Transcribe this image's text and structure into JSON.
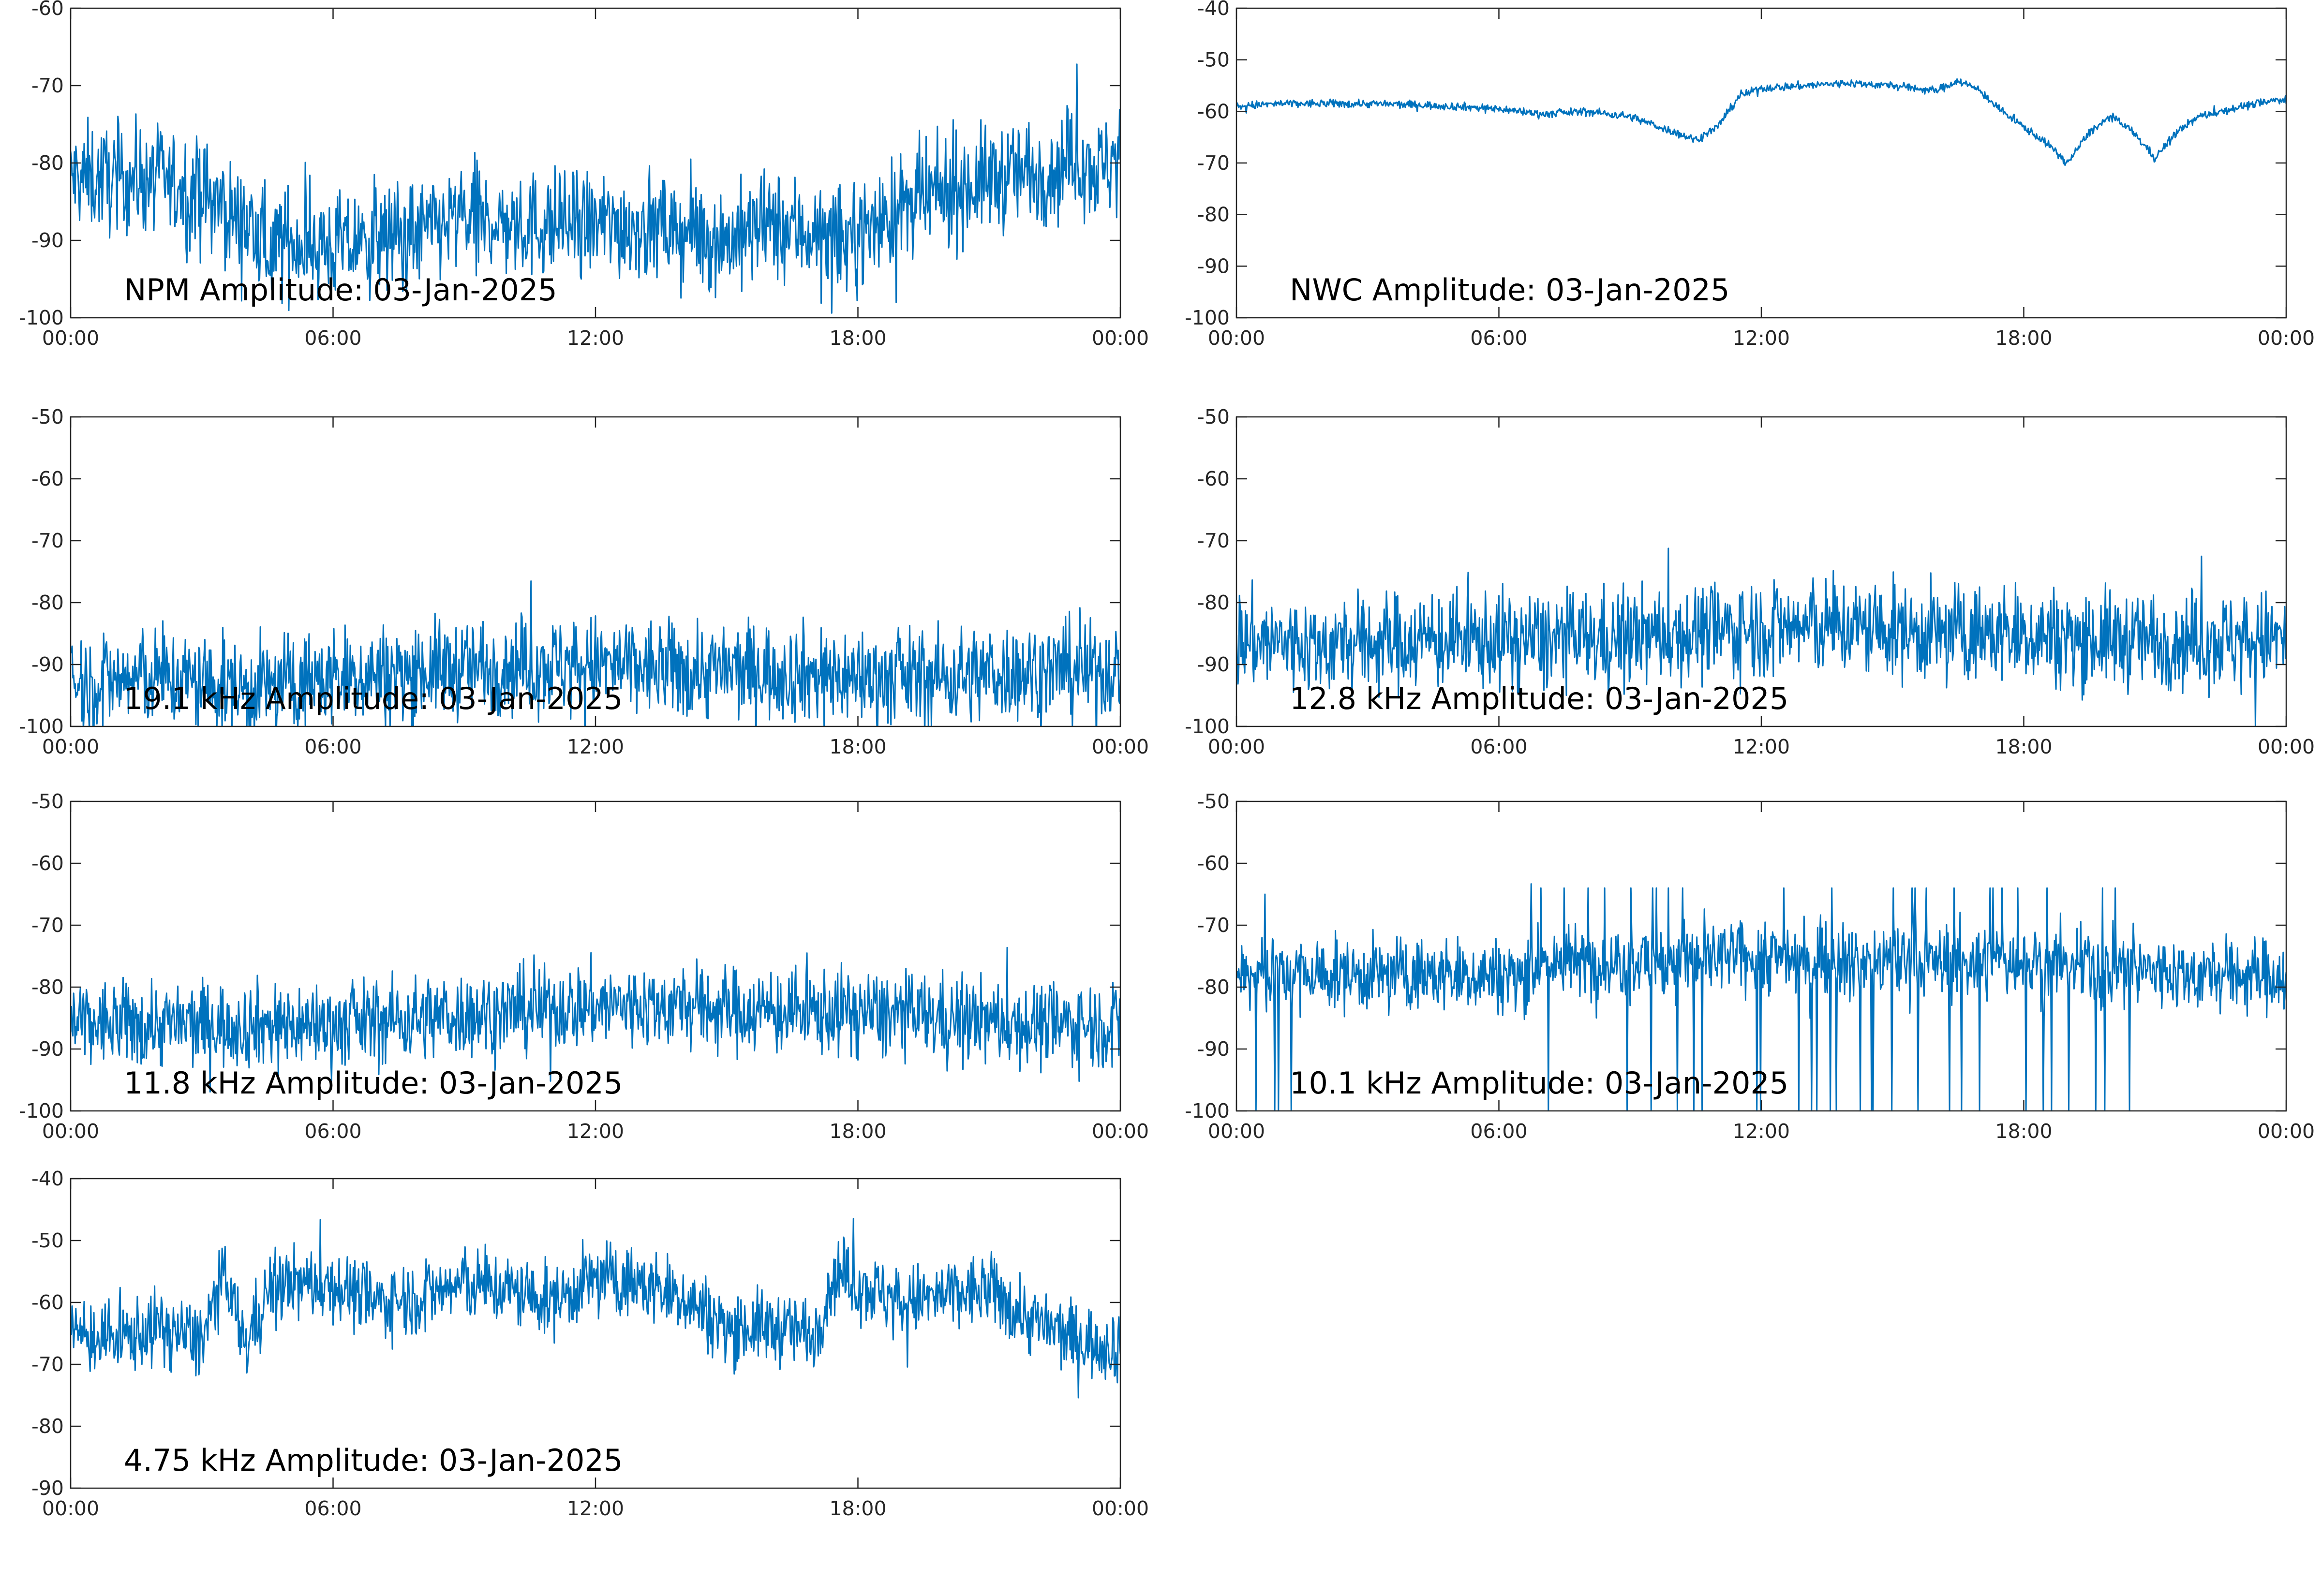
{
  "colors": {
    "series": "#0072BD",
    "axes": "#262626",
    "background": "#FFFFFF"
  },
  "chart_data": [
    {
      "type": "line",
      "title": "NPM Amplitude: 03-Jan-2025",
      "x_ticks": [
        "00:00",
        "06:00",
        "12:00",
        "18:00",
        "00:00"
      ],
      "xlim_hours": [
        0,
        24
      ],
      "y_ticks": [
        "-60",
        "-70",
        "-80",
        "-90",
        "-100"
      ],
      "ylim": [
        -100,
        -60
      ],
      "grid": false,
      "noise": 3.5,
      "trace": {
        "hours": [
          0,
          1,
          2,
          3,
          4,
          4.5,
          5,
          6,
          7,
          8,
          9,
          10,
          11,
          12,
          13,
          14,
          15,
          16,
          17,
          17.5,
          18,
          19,
          20,
          21,
          22,
          22.5,
          23,
          23.5,
          24
        ],
        "values": [
          -82,
          -82,
          -82,
          -84,
          -88,
          -91,
          -90,
          -91,
          -90,
          -89,
          -87,
          -88,
          -88,
          -88,
          -88,
          -89,
          -90,
          -88,
          -89,
          -91,
          -89,
          -86,
          -84,
          -82,
          -81,
          -81,
          -79,
          -81,
          -79
        ]
      }
    },
    {
      "type": "line",
      "title": "NWC Amplitude: 03-Jan-2025",
      "x_ticks": [
        "00:00",
        "06:00",
        "12:00",
        "18:00",
        "00:00"
      ],
      "xlim_hours": [
        0,
        24
      ],
      "y_ticks": [
        "-40",
        "-50",
        "-60",
        "-70",
        "-80",
        "-90",
        "-100"
      ],
      "ylim": [
        -100,
        -40
      ],
      "grid": false,
      "noise": 0.4,
      "trace": {
        "hours": [
          0,
          1,
          2,
          3,
          4,
          5,
          6,
          7,
          8,
          9,
          10,
          10.5,
          11,
          11.5,
          12,
          13,
          14,
          15,
          16,
          16.5,
          17,
          17.5,
          18,
          18.5,
          19,
          19.5,
          20,
          20.5,
          21,
          21.5,
          22,
          22.5,
          23,
          24
        ],
        "values": [
          -59,
          -58.5,
          -58.5,
          -58.5,
          -58.7,
          -59,
          -59.5,
          -60.5,
          -60,
          -61,
          -64,
          -65.5,
          -63,
          -57,
          -55.5,
          -55,
          -54.5,
          -55,
          -56,
          -54,
          -56,
          -60,
          -63,
          -66,
          -70,
          -64,
          -61,
          -64,
          -69,
          -64,
          -61,
          -60,
          -59,
          -57.5
        ]
      }
    },
    {
      "type": "line",
      "title": "19.1 kHz Amplitude: 03-Jan-2025",
      "x_ticks": [
        "00:00",
        "06:00",
        "12:00",
        "18:00",
        "00:00"
      ],
      "xlim_hours": [
        0,
        24
      ],
      "y_ticks": [
        "-50",
        "-60",
        "-70",
        "-80",
        "-90",
        "-100"
      ],
      "ylim": [
        -100,
        -50
      ],
      "grid": false,
      "noise": 4,
      "trace": {
        "hours": [
          0,
          2,
          4,
          6,
          8,
          10,
          12,
          14,
          16,
          18,
          20,
          22,
          24
        ],
        "values": [
          -93,
          -92,
          -94,
          -92,
          -91,
          -90,
          -90,
          -91,
          -91,
          -92,
          -92,
          -91,
          -91
        ]
      }
    },
    {
      "type": "line",
      "title": "12.8 kHz Amplitude: 03-Jan-2025",
      "x_ticks": [
        "00:00",
        "06:00",
        "12:00",
        "18:00",
        "00:00"
      ],
      "xlim_hours": [
        0,
        24
      ],
      "y_ticks": [
        "-50",
        "-60",
        "-70",
        "-80",
        "-90",
        "-100"
      ],
      "ylim": [
        -100,
        -50
      ],
      "grid": false,
      "noise": 4,
      "trace": {
        "hours": [
          0,
          2,
          4,
          6,
          8,
          10,
          12,
          14,
          16,
          18,
          20,
          22,
          24
        ],
        "values": [
          -86,
          -87,
          -86,
          -86,
          -86,
          -85,
          -84,
          -84,
          -85,
          -85,
          -86,
          -86,
          -86
        ]
      }
    },
    {
      "type": "line",
      "title": "11.8 kHz Amplitude: 03-Jan-2025",
      "x_ticks": [
        "00:00",
        "06:00",
        "12:00",
        "18:00",
        "00:00"
      ],
      "xlim_hours": [
        0,
        24
      ],
      "y_ticks": [
        "-50",
        "-60",
        "-70",
        "-80",
        "-90",
        "-100"
      ],
      "ylim": [
        -100,
        -50
      ],
      "grid": false,
      "noise": 3.5,
      "trace": {
        "hours": [
          0,
          2,
          4,
          6,
          8,
          10,
          12,
          14,
          16,
          18,
          20,
          22,
          24
        ],
        "values": [
          -86,
          -86,
          -86,
          -86,
          -85,
          -84,
          -83,
          -83,
          -84,
          -84,
          -85,
          -86,
          -86
        ]
      }
    },
    {
      "type": "line",
      "title": "10.1 kHz Amplitude: 03-Jan-2025",
      "x_ticks": [
        "00:00",
        "06:00",
        "12:00",
        "18:00",
        "00:00"
      ],
      "xlim_hours": [
        0,
        24
      ],
      "y_ticks": [
        "-50",
        "-60",
        "-70",
        "-80",
        "-90",
        "-100"
      ],
      "ylim": [
        -100,
        -50
      ],
      "grid": false,
      "noise": 3,
      "trace": {
        "hours": [
          0,
          1,
          2,
          4,
          6,
          6.5,
          7,
          9,
          12,
          13,
          14,
          16,
          18,
          20,
          22,
          24
        ],
        "values": [
          -78,
          -78,
          -78,
          -78,
          -78,
          -78,
          -76,
          -76,
          -75,
          -75,
          -76,
          -76,
          -76,
          -77,
          -78,
          -78
        ]
      }
    },
    {
      "type": "line",
      "title": "4.75 kHz Amplitude: 03-Jan-2025",
      "x_ticks": [
        "00:00",
        "06:00",
        "12:00",
        "18:00",
        "00:00"
      ],
      "xlim_hours": [
        0,
        24
      ],
      "y_ticks": [
        "-40",
        "-50",
        "-60",
        "-70",
        "-80",
        "-90"
      ],
      "ylim": [
        -90,
        -40
      ],
      "grid": false,
      "noise": 3,
      "trace": {
        "hours": [
          0,
          1,
          2,
          3,
          3.5,
          4,
          4.5,
          5,
          6,
          7,
          8,
          9,
          10,
          11,
          12,
          13,
          14,
          15,
          16,
          17,
          17.5,
          18,
          19,
          20,
          21,
          22,
          23,
          24
        ],
        "values": [
          -65,
          -66,
          -64,
          -66,
          -56,
          -67,
          -58,
          -57,
          -57,
          -60,
          -59,
          -57,
          -58,
          -60,
          -56,
          -57,
          -59,
          -64,
          -64,
          -65,
          -55,
          -57,
          -60,
          -59,
          -58,
          -63,
          -66,
          -67
        ]
      }
    }
  ]
}
